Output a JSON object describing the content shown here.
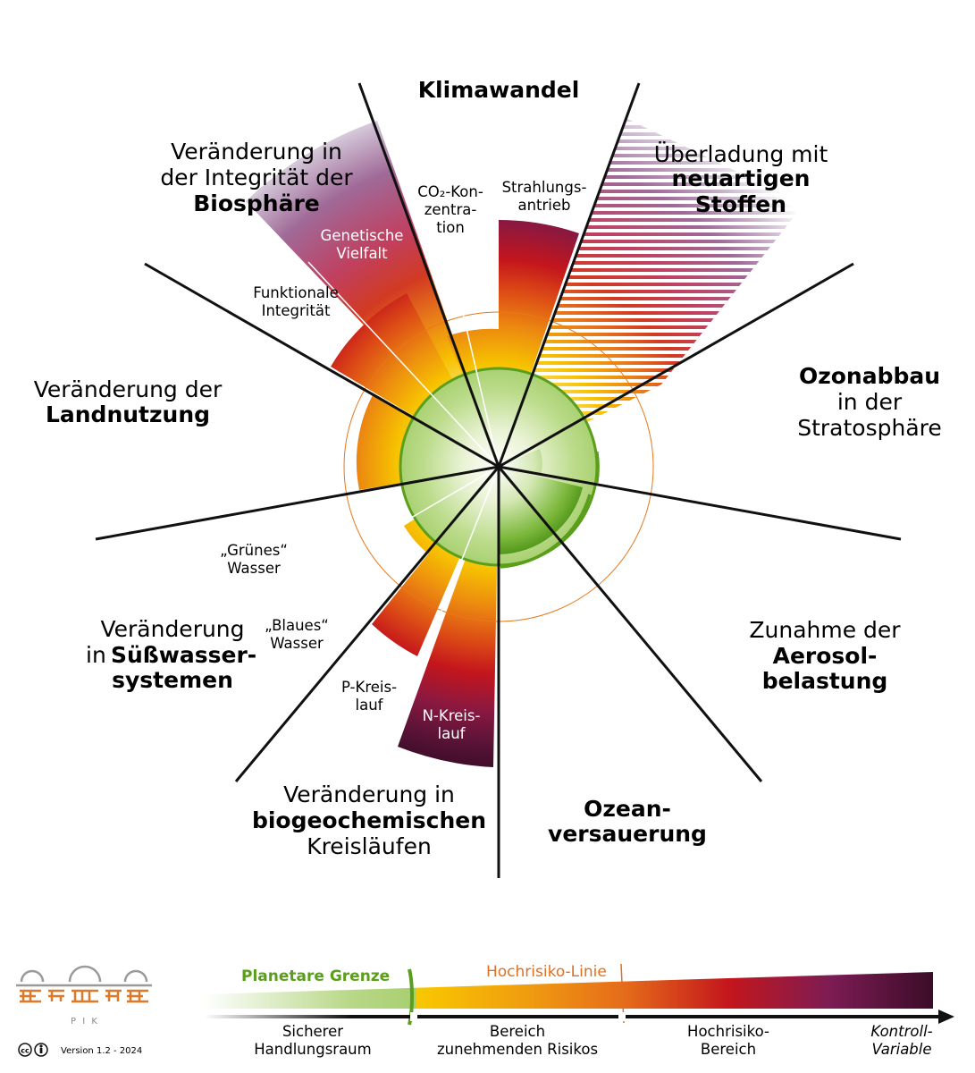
{
  "colors": {
    "safe_green": "#5a9e1c",
    "light_green": "#c8e0a0",
    "yellow": "#f7c200",
    "orange": "#e8781a",
    "red": "#c4161c",
    "dark_purple": "#3c0c28",
    "high_risk_line": "#e07020",
    "ray": "#111111"
  },
  "sectors": {
    "climate": {
      "title": "Klimawandel"
    },
    "novel": {
      "l1": "Überladung mit",
      "l2": "neuartigen",
      "l3": "Stoffen"
    },
    "ozone": {
      "l1": "Ozonabbau",
      "l2": "in der",
      "l3": "Stratosphäre"
    },
    "aerosol": {
      "l1": "Zunahme der",
      "l2": "Aerosol-",
      "l3": "belastung"
    },
    "ocean": {
      "l1": "Ozean-",
      "l2": "versauerung"
    },
    "biogeo": {
      "l1": "Veränderung in",
      "l2": "biogeochemischen",
      "l3": "Kreisläufen"
    },
    "fresh": {
      "l1": "Veränderung",
      "l2a": "in ",
      "l2b": "Süßwasser-",
      "l3": "systemen"
    },
    "land": {
      "l1": "Veränderung der",
      "l2": "Landnutzung"
    },
    "biosphere": {
      "l1": "Veränderung in",
      "l2": "der Integrität der",
      "l3": "Biosphäre"
    }
  },
  "sublabels": {
    "co2": {
      "l1": "CO₂-Kon-",
      "l2": "zentra-",
      "l3": "tion"
    },
    "radiative": {
      "l1": "Strahlungs-",
      "l2": "antrieb"
    },
    "genetic": {
      "l1": "Genetische",
      "l2": "Vielfalt"
    },
    "functional": {
      "l1": "Funktionale",
      "l2": "Integrität"
    },
    "green_water": {
      "l1": "„Grünes“",
      "l2": "Wasser"
    },
    "blue_water": {
      "l1": "„Blaues“",
      "l2": "Wasser"
    },
    "p_cycle": {
      "l1": "P-Kreis-",
      "l2": "lauf"
    },
    "n_cycle": {
      "l1": "N-Kreis-",
      "l2": "lauf"
    }
  },
  "legend": {
    "planetary_boundary": "Planetare Grenze",
    "high_risk_line": "Hochrisiko-Linie",
    "zone1": {
      "l1": "Sicherer",
      "l2": "Handlungsraum"
    },
    "zone2": {
      "l1": "Bereich",
      "l2": "zunehmenden Risikos"
    },
    "zone3": {
      "l1": "Hochrisiko-",
      "l2": "Bereich"
    },
    "axis": {
      "l1": "Kontroll-",
      "l2": "Variable"
    }
  },
  "logo": {
    "letters": "P I K"
  },
  "footer": {
    "license": "cc",
    "version": "Version 1.2 - 2024"
  }
}
